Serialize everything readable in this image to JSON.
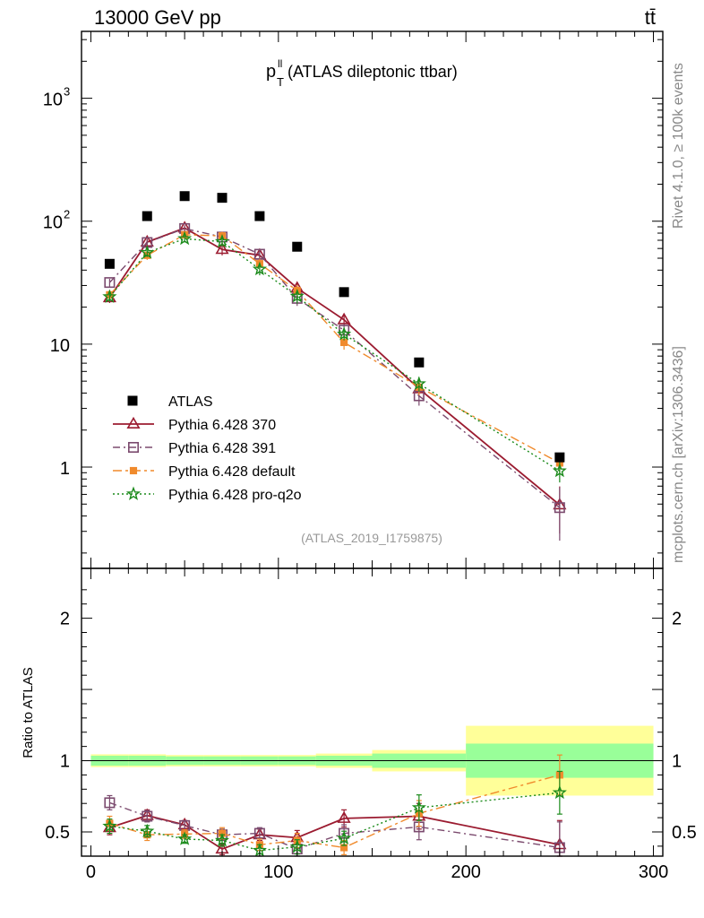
{
  "header": {
    "energy": "13000 GeV pp",
    "process": "tt̄"
  },
  "side": {
    "rivet": "Rivet 4.1.0, ≥ 100k events",
    "mcplots": "mcplots.cern.ch [arXiv:1306.3436]"
  },
  "chart_data": {
    "type": "scatter",
    "title": "p_T^ll (ATLAS dileptonic ttbar)",
    "title_main": "p",
    "title_sup": "ll",
    "title_sub": "T",
    "title_rest": " (ATLAS dileptonic ttbar)",
    "reference": "(ATLAS_2019_I1759875)",
    "x": [
      10,
      30,
      50,
      70,
      90,
      110,
      135,
      175,
      250
    ],
    "bin_edges": [
      0,
      20,
      40,
      60,
      80,
      100,
      120,
      150,
      200,
      300
    ],
    "xlim": [
      -5,
      305
    ],
    "ylim": [
      0.15,
      3500
    ],
    "ylabel": "",
    "ratio_ylabel": "Ratio to ATLAS",
    "ratio_ylim": [
      0.33,
      2.35
    ],
    "top_ticks": [
      {
        "value": 1,
        "label": "1"
      },
      {
        "value": 10,
        "label": "10"
      },
      {
        "value": 100,
        "label": "10",
        "sup": "2"
      },
      {
        "value": 1000,
        "label": "10",
        "sup": "3"
      }
    ],
    "ratio_ticks": [
      {
        "value": 0.5,
        "label": "0.5"
      },
      {
        "value": 1,
        "label": "1"
      },
      {
        "value": 2,
        "label": "2"
      }
    ],
    "x_ticks": [
      {
        "value": 0,
        "label": "0"
      },
      {
        "value": 100,
        "label": "100"
      },
      {
        "value": 200,
        "label": "200"
      },
      {
        "value": 300,
        "label": "300"
      }
    ],
    "data_series": {
      "name": "ATLAS",
      "values": [
        45,
        110,
        160,
        155,
        110,
        62,
        26.5,
        7.1,
        1.2
      ],
      "band_inner": [
        0.035,
        0.035,
        0.03,
        0.03,
        0.03,
        0.03,
        0.035,
        0.05,
        0.12
      ],
      "band_outer": [
        0.045,
        0.045,
        0.04,
        0.04,
        0.04,
        0.04,
        0.05,
        0.075,
        0.245
      ]
    },
    "series": [
      {
        "name": "Pythia 6.428 370",
        "color": "#9b1b30",
        "marker": "triangle",
        "dash": "",
        "ratio": [
          0.53,
          0.615,
          0.55,
          0.38,
          0.48,
          0.46,
          0.595,
          0.61,
          0.41
        ],
        "err": [
          0.05,
          0.04,
          0.03,
          0.04,
          0.04,
          0.05,
          0.06,
          0.09,
          0.17
        ]
      },
      {
        "name": "Pythia 6.428 391",
        "color": "#7b4a6e",
        "marker": "square-open",
        "dash": "8,4,2,4",
        "ratio": [
          0.705,
          0.61,
          0.545,
          0.48,
          0.49,
          0.38,
          0.49,
          0.535,
          0.39
        ],
        "err": [
          0.05,
          0.04,
          0.03,
          0.04,
          0.04,
          0.05,
          0.06,
          0.09,
          0.18
        ]
      },
      {
        "name": "Pythia 6.428 default",
        "color": "#f08a2c",
        "marker": "square-filled",
        "dash": "10,4,3,4",
        "ratio": [
          0.56,
          0.48,
          0.485,
          0.49,
          0.41,
          0.44,
          0.39,
          0.63,
          0.9
        ],
        "err": [
          0.05,
          0.04,
          0.03,
          0.04,
          0.04,
          0.05,
          0.05,
          0.09,
          0.14
        ]
      },
      {
        "name": "Pythia 6.428 pro-q2o",
        "color": "#1a8a1a",
        "marker": "star",
        "dash": "2,3",
        "ratio": [
          0.54,
          0.505,
          0.45,
          0.44,
          0.37,
          0.395,
          0.455,
          0.67,
          0.775
        ],
        "err": [
          0.05,
          0.04,
          0.03,
          0.04,
          0.04,
          0.05,
          0.05,
          0.09,
          0.15
        ]
      }
    ]
  }
}
